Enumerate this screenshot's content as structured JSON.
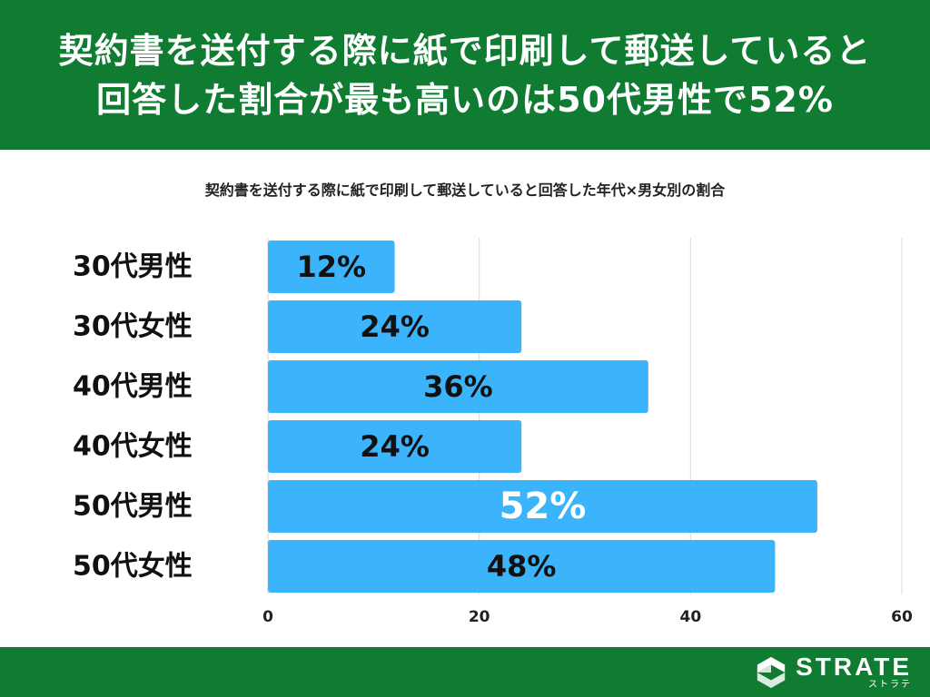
{
  "header": {
    "title_line1": "契約書を送付する際に紙で印刷して郵送していると",
    "title_line2": "回答した割合が最も高いのは50代男性で52%"
  },
  "brand": {
    "name": "STRATE",
    "kana": "ストラテ",
    "icon": "strate-logo-mark"
  },
  "colors": {
    "header_bg": "#0f7c32",
    "bar": "#3bb4fb",
    "grid": "#d9d9d9"
  },
  "chart_data": {
    "type": "bar",
    "orientation": "horizontal",
    "title": "契約書を送付する際に紙で印刷して郵送していると回答した年代×男女別の割合",
    "categories": [
      "30代男性",
      "30代女性",
      "40代男性",
      "40代女性",
      "50代男性",
      "50代女性"
    ],
    "values": [
      12,
      24,
      36,
      24,
      52,
      48
    ],
    "data_labels": [
      "12%",
      "24%",
      "36%",
      "24%",
      "52%",
      "48%"
    ],
    "highlight_index": 4,
    "xlim": [
      0,
      60
    ],
    "x_ticks": [
      0,
      20,
      40,
      60
    ],
    "grid": true,
    "xlabel": "",
    "ylabel": ""
  }
}
